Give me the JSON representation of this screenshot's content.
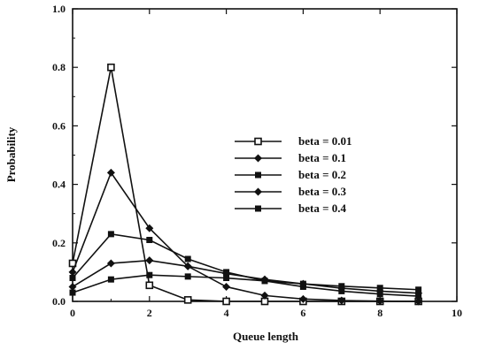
{
  "chart_data": {
    "type": "line",
    "xlabel": "Queue length",
    "ylabel": "Probability",
    "xlim": [
      0,
      10
    ],
    "ylim": [
      0,
      1.0
    ],
    "xticks": [
      "0",
      "2",
      "4",
      "6",
      "8",
      "10"
    ],
    "yticks": [
      "0.0",
      "0.2",
      "0.4",
      "0.6",
      "0.8",
      "1.0"
    ],
    "grid": false,
    "legend": "center-right",
    "x": [
      0,
      1,
      2,
      3,
      4,
      5,
      6,
      7,
      8,
      9
    ],
    "series": [
      {
        "name": "beta = 0.01",
        "marker": "open-square",
        "values": [
          0.13,
          0.8,
          0.055,
          0.005,
          0.0,
          0.0,
          0.0,
          0.0,
          0.0,
          0.0
        ]
      },
      {
        "name": "beta = 0.1",
        "marker": "diamond",
        "values": [
          0.1,
          0.44,
          0.25,
          0.12,
          0.05,
          0.02,
          0.008,
          0.003,
          0.001,
          0.0
        ]
      },
      {
        "name": "beta = 0.2",
        "marker": "square",
        "values": [
          0.08,
          0.23,
          0.21,
          0.145,
          0.1,
          0.07,
          0.05,
          0.035,
          0.025,
          0.018
        ]
      },
      {
        "name": "beta = 0.3",
        "marker": "diamond",
        "values": [
          0.05,
          0.13,
          0.14,
          0.12,
          0.095,
          0.075,
          0.06,
          0.045,
          0.035,
          0.028
        ]
      },
      {
        "name": "beta = 0.4",
        "marker": "square",
        "values": [
          0.03,
          0.075,
          0.09,
          0.085,
          0.08,
          0.07,
          0.06,
          0.052,
          0.046,
          0.04
        ]
      }
    ],
    "color": "#111111"
  }
}
